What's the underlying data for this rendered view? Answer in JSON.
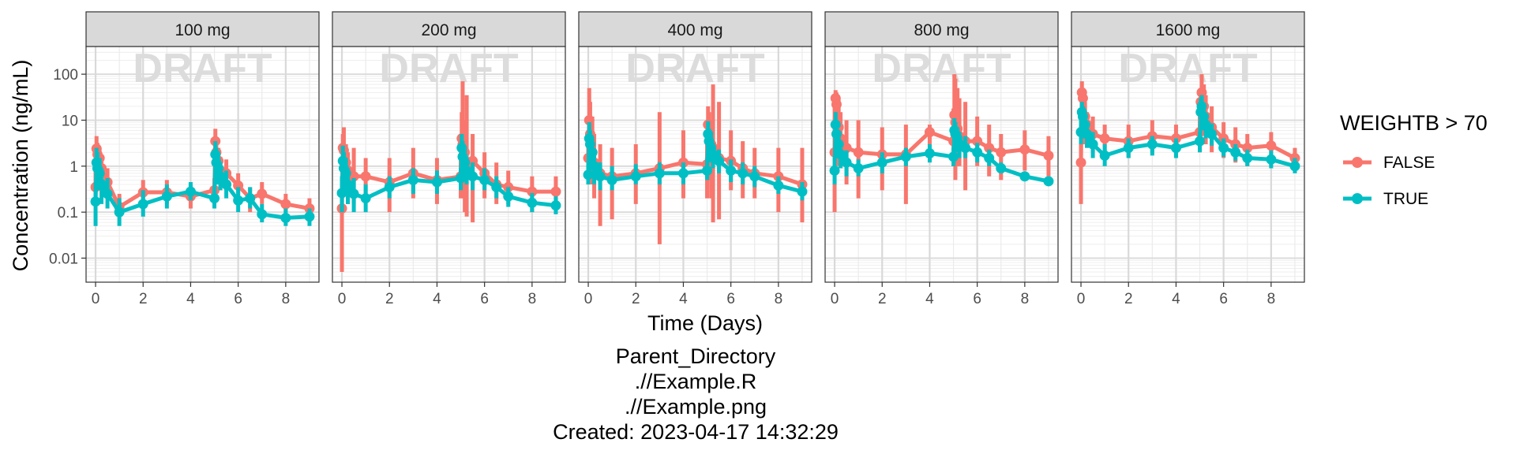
{
  "chart_data": {
    "type": "line",
    "facet_label": "",
    "panels": [
      "100 mg",
      "200 mg",
      "400 mg",
      "800 mg",
      "1600 mg"
    ],
    "xlabel": "Time (Days)",
    "ylabel": "Concentration (ng/mL)",
    "watermark": "DRAFT",
    "xlim": [
      -0.4,
      9.4
    ],
    "ylim": [
      0.003,
      400
    ],
    "yscale": "log",
    "x_ticks": [
      0,
      2,
      4,
      6,
      8
    ],
    "y_ticks": [
      0.01,
      0.1,
      1,
      10,
      100
    ],
    "y_tick_labels": [
      "0.01",
      "0.1",
      "1",
      "10",
      "100"
    ],
    "grid": true,
    "legend": {
      "title": "WEIGHTB > 70",
      "position": "right",
      "entries": [
        {
          "label": "FALSE",
          "color": "#F8766D"
        },
        {
          "label": "TRUE",
          "color": "#00BFC4"
        }
      ]
    },
    "time_points": [
      0,
      0.04,
      0.08,
      0.17,
      0.25,
      0.5,
      1,
      2,
      3,
      4,
      5,
      5.04,
      5.08,
      5.17,
      5.25,
      5.5,
      6,
      6.5,
      7,
      8,
      9
    ],
    "series": [
      {
        "name": "FALSE",
        "panels": [
          {
            "y": [
              0.35,
              2.4,
              1.8,
              1.5,
              0.9,
              0.45,
              0.13,
              0.27,
              0.27,
              0.22,
              0.3,
              3.5,
              2.0,
              1.3,
              0.8,
              0.7,
              0.38,
              0.2,
              0.25,
              0.15,
              0.12
            ],
            "lo": [
              0.15,
              1.2,
              0.9,
              0.7,
              0.4,
              0.2,
              0.08,
              0.15,
              0.15,
              0.12,
              0.15,
              2.0,
              1.0,
              0.6,
              0.3,
              0.3,
              0.2,
              0.1,
              0.15,
              0.1,
              0.08
            ],
            "hi": [
              0.8,
              4.5,
              3.2,
              2.5,
              1.5,
              0.9,
              0.25,
              0.5,
              0.5,
              0.4,
              0.55,
              6.5,
              4.0,
              2.5,
              1.6,
              1.4,
              0.7,
              0.35,
              0.45,
              0.25,
              0.2
            ]
          },
          {
            "y": [
              0.12,
              2.5,
              2.2,
              1.2,
              0.8,
              0.6,
              0.6,
              0.45,
              0.7,
              0.5,
              0.6,
              4.0,
              3.0,
              2.0,
              1.0,
              1.3,
              0.7,
              0.4,
              0.35,
              0.28,
              0.28
            ],
            "lo": [
              0.005,
              1.2,
              0.6,
              0.25,
              0.15,
              0.15,
              0.2,
              0.1,
              0.2,
              0.15,
              0.2,
              0.5,
              0.2,
              0.1,
              0.08,
              0.06,
              0.2,
              0.15,
              0.15,
              0.1,
              0.1
            ],
            "hi": [
              0.3,
              5.0,
              7.0,
              3.0,
              2.0,
              2.5,
              1.5,
              1.5,
              2.5,
              1.5,
              2.0,
              15,
              70,
              10,
              35,
              5.0,
              2.0,
              1.2,
              0.8,
              0.6,
              0.6
            ]
          },
          {
            "y": [
              1.5,
              10,
              5.0,
              2.0,
              1.2,
              0.7,
              0.6,
              0.7,
              0.9,
              1.2,
              1.1,
              8.0,
              5.0,
              3.0,
              2.5,
              1.5,
              1.3,
              0.9,
              0.7,
              0.6,
              0.4
            ],
            "lo": [
              0.4,
              3.0,
              0.9,
              0.4,
              0.2,
              0.05,
              0.07,
              0.15,
              0.02,
              0.2,
              0.2,
              2.0,
              0.5,
              0.2,
              0.06,
              0.07,
              0.3,
              0.2,
              0.2,
              0.1,
              0.06
            ],
            "hi": [
              5.0,
              50,
              25,
              12,
              5.0,
              3.0,
              2.5,
              3.0,
              15,
              6.0,
              4.0,
              20,
              15,
              10,
              60,
              25,
              6.0,
              3.5,
              2.5,
              2.5,
              2.5
            ]
          },
          {
            "y": [
              2.0,
              30,
              22,
              7.0,
              4.0,
              2.5,
              2.0,
              1.8,
              1.8,
              5.5,
              3.5,
              13,
              9.0,
              6.5,
              4.5,
              3.5,
              3.5,
              2.5,
              2.0,
              2.3,
              1.7
            ],
            "lo": [
              0.1,
              8.0,
              4.0,
              1.0,
              0.9,
              0.4,
              0.2,
              0.3,
              0.15,
              3.0,
              1.0,
              1.0,
              0.5,
              1.0,
              1.0,
              0.3,
              1.0,
              0.6,
              0.5,
              0.8,
              0.6
            ],
            "hi": [
              30,
              45,
              40,
              30,
              15,
              10,
              10,
              7.0,
              8.0,
              8.0,
              18,
              100,
              80,
              50,
              30,
              25,
              12,
              8.0,
              5.0,
              6.0,
              4.5
            ]
          },
          {
            "y": [
              1.2,
              40,
              30,
              12,
              8.0,
              5.0,
              4.0,
              3.5,
              4.5,
              4.0,
              5.5,
              25,
              40,
              20,
              12,
              7.0,
              4.0,
              3.0,
              2.5,
              2.8,
              1.5
            ],
            "lo": [
              0.15,
              10,
              6.0,
              3.0,
              2.5,
              2.0,
              1.5,
              1.5,
              2.0,
              1.5,
              2.0,
              5.0,
              10,
              5.0,
              3.0,
              2.0,
              1.5,
              1.2,
              1.0,
              1.0,
              0.9
            ],
            "hi": [
              7.0,
              70,
              50,
              25,
              15,
              12,
              8.0,
              8.0,
              10,
              8.0,
              12,
              50,
              100,
              60,
              35,
              20,
              9.0,
              7.0,
              5.0,
              5.5,
              2.5
            ]
          }
        ]
      },
      {
        "name": "TRUE",
        "panels": [
          {
            "y": [
              0.17,
              1.2,
              0.9,
              0.7,
              0.4,
              0.25,
              0.1,
              0.15,
              0.22,
              0.28,
              0.2,
              1.8,
              1.2,
              0.9,
              0.6,
              0.4,
              0.18,
              0.2,
              0.09,
              0.075,
              0.08
            ],
            "lo": [
              0.05,
              0.5,
              0.4,
              0.3,
              0.15,
              0.12,
              0.05,
              0.08,
              0.12,
              0.18,
              0.12,
              0.8,
              0.6,
              0.4,
              0.3,
              0.2,
              0.1,
              0.12,
              0.06,
              0.05,
              0.05
            ],
            "hi": [
              0.45,
              2.5,
              2.0,
              1.5,
              0.9,
              0.55,
              0.2,
              0.3,
              0.4,
              0.45,
              0.35,
              3.5,
              2.5,
              1.8,
              1.2,
              0.8,
              0.35,
              0.35,
              0.15,
              0.12,
              0.12
            ]
          },
          {
            "y": [
              0.26,
              1.3,
              0.9,
              0.7,
              0.4,
              0.25,
              0.2,
              0.35,
              0.5,
              0.45,
              0.55,
              2.5,
              1.6,
              1.2,
              0.8,
              0.6,
              0.5,
              0.35,
              0.22,
              0.16,
              0.14
            ],
            "lo": [
              0.1,
              0.6,
              0.3,
              0.25,
              0.15,
              0.1,
              0.1,
              0.2,
              0.25,
              0.25,
              0.3,
              1.2,
              0.7,
              0.5,
              0.4,
              0.3,
              0.3,
              0.2,
              0.13,
              0.1,
              0.09
            ],
            "hi": [
              0.6,
              2.8,
              2.0,
              1.5,
              0.9,
              0.55,
              0.4,
              0.6,
              0.9,
              0.8,
              0.9,
              5.0,
              3.5,
              2.5,
              1.6,
              1.2,
              0.9,
              0.6,
              0.35,
              0.26,
              0.22
            ]
          },
          {
            "y": [
              0.65,
              4.0,
              3.0,
              2.0,
              1.0,
              0.6,
              0.5,
              0.6,
              0.7,
              0.7,
              0.8,
              5.0,
              3.5,
              2.5,
              1.8,
              1.3,
              0.8,
              0.7,
              0.6,
              0.38,
              0.28
            ],
            "lo": [
              0.4,
              1.5,
              1.2,
              0.8,
              0.4,
              0.3,
              0.3,
              0.4,
              0.4,
              0.4,
              0.5,
              2.5,
              1.7,
              1.2,
              0.9,
              0.7,
              0.45,
              0.4,
              0.35,
              0.25,
              0.18
            ],
            "hi": [
              1.2,
              9.0,
              6.0,
              4.0,
              2.0,
              1.2,
              1.0,
              1.1,
              1.2,
              1.2,
              1.5,
              9.5,
              6.5,
              4.5,
              3.2,
              2.3,
              1.4,
              1.2,
              1.0,
              0.6,
              0.45
            ]
          },
          {
            "y": [
              0.8,
              8.0,
              5.0,
              3.0,
              1.8,
              1.2,
              0.9,
              1.2,
              1.6,
              1.9,
              1.6,
              6.0,
              5.0,
              4.0,
              3.0,
              2.5,
              2.0,
              1.5,
              0.9,
              0.6,
              0.47
            ],
            "lo": [
              0.4,
              3.5,
              2.5,
              1.5,
              0.9,
              0.6,
              0.6,
              0.7,
              1.0,
              1.2,
              1.0,
              3.0,
              2.5,
              2.0,
              1.5,
              1.5,
              1.2,
              1.0,
              0.7,
              0.5,
              0.4
            ],
            "hi": [
              1.6,
              15,
              10,
              6.0,
              3.5,
              2.2,
              1.4,
              2.0,
              2.5,
              3.0,
              2.5,
              11,
              9.0,
              7.0,
              5.5,
              4.5,
              3.2,
              2.3,
              1.2,
              0.75,
              0.55
            ]
          },
          {
            "y": [
              5.5,
              15,
              12,
              8.0,
              5.0,
              3.0,
              1.7,
              2.5,
              3.0,
              2.5,
              3.5,
              15,
              20,
              12,
              8.0,
              5.0,
              2.5,
              2.0,
              1.5,
              1.4,
              1.0
            ],
            "lo": [
              3.0,
              8.0,
              6.0,
              4.0,
              2.5,
              1.5,
              1.0,
              1.5,
              1.7,
              1.5,
              2.0,
              6.0,
              10,
              6.0,
              4.0,
              2.8,
              1.6,
              1.3,
              1.0,
              0.9,
              0.7
            ],
            "hi": [
              10,
              25,
              20,
              14,
              9.0,
              5.5,
              3.0,
              4.0,
              4.5,
              4.0,
              5.5,
              30,
              35,
              22,
              14,
              8.5,
              4.0,
              3.0,
              2.3,
              2.2,
              1.5
            ]
          }
        ]
      }
    ]
  },
  "caption": {
    "line1": "Parent_Directory",
    "line2": ".//Example.R",
    "line3": ".//Example.png",
    "line4": "Created: 2023-04-17 14:32:29"
  }
}
